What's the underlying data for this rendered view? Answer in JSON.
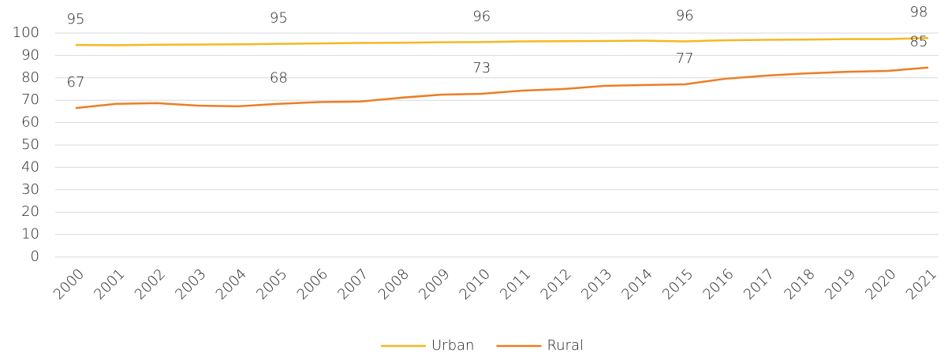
{
  "chart_data": {
    "type": "line",
    "x": [
      2000,
      2001,
      2002,
      2003,
      2004,
      2005,
      2006,
      2007,
      2008,
      2009,
      2010,
      2011,
      2012,
      2013,
      2014,
      2015,
      2016,
      2017,
      2018,
      2019,
      2020,
      2021
    ],
    "series": [
      {
        "name": "Urban",
        "color": "#f6b820",
        "values": [
          94.7,
          94.6,
          94.8,
          94.9,
          95.0,
          95.2,
          95.4,
          95.6,
          95.7,
          95.9,
          96.0,
          96.3,
          96.4,
          96.5,
          96.6,
          96.3,
          96.8,
          97.0,
          97.1,
          97.3,
          97.3,
          97.8
        ],
        "value_labels": [
          "95",
          null,
          null,
          null,
          null,
          "95",
          null,
          null,
          null,
          null,
          "96",
          null,
          null,
          null,
          null,
          "96",
          null,
          null,
          null,
          null,
          null,
          "98"
        ]
      },
      {
        "name": "Rural",
        "color": "#ee7d22",
        "values": [
          66.5,
          68.4,
          68.7,
          67.6,
          67.3,
          68.4,
          69.2,
          69.4,
          71.1,
          72.5,
          72.9,
          74.3,
          75.0,
          76.4,
          76.8,
          77.1,
          79.6,
          81.0,
          82.0,
          82.7,
          83.1,
          84.6
        ],
        "value_labels": [
          "67",
          null,
          null,
          null,
          null,
          "68",
          null,
          null,
          null,
          null,
          "73",
          null,
          null,
          null,
          null,
          "77",
          null,
          null,
          null,
          null,
          null,
          "85"
        ]
      }
    ],
    "xlim": [
      2000,
      2021
    ],
    "ylim": [
      0,
      100
    ],
    "yticks": [
      0,
      10,
      20,
      30,
      40,
      50,
      60,
      70,
      80,
      90,
      100
    ],
    "grid": true,
    "legend": "bottom"
  }
}
